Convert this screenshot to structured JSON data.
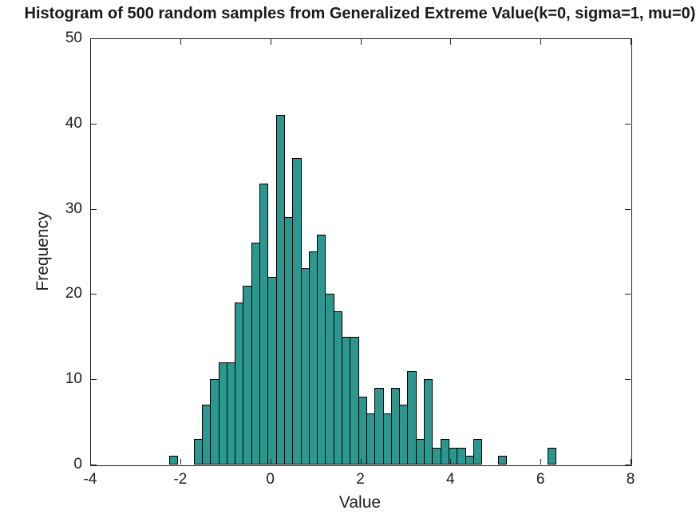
{
  "chart_data": {
    "type": "bar",
    "subtype": "histogram",
    "title": "Histogram of 500 random samples from Generalized Extreme Value(k=0, sigma=1, mu=0)",
    "xlabel": "Value",
    "ylabel": "Frequency",
    "xlim": [
      -4,
      8
    ],
    "ylim": [
      0,
      50
    ],
    "xtick_values": [
      -4,
      -2,
      0,
      2,
      4,
      6,
      8
    ],
    "xtick_labels": [
      "-4",
      "-2",
      "0",
      "2",
      "4",
      "6",
      "8"
    ],
    "ytick_values": [
      0,
      10,
      20,
      30,
      40,
      50
    ],
    "ytick_labels": [
      "0",
      "10",
      "20",
      "30",
      "40",
      "50"
    ],
    "bin_start": -2.25,
    "bin_width": 0.18257,
    "counts": [
      1,
      0,
      0,
      3,
      7,
      10,
      12,
      12,
      19,
      21,
      26,
      33,
      22,
      41,
      29,
      36,
      23,
      25,
      27,
      20,
      18,
      15,
      15,
      8,
      6,
      9,
      6,
      9,
      7,
      11,
      3,
      10,
      2,
      3,
      2,
      2,
      1,
      3,
      0,
      0,
      1,
      0,
      0,
      0,
      0,
      0,
      2
    ],
    "total_samples": "500",
    "legend": "none",
    "grid": "off",
    "colors": {
      "bar_fill": "#2c978f",
      "bar_edge": "#000000",
      "axis": "#1f1f1f",
      "text": "#1f1f1f",
      "background": "#ffffff"
    }
  }
}
